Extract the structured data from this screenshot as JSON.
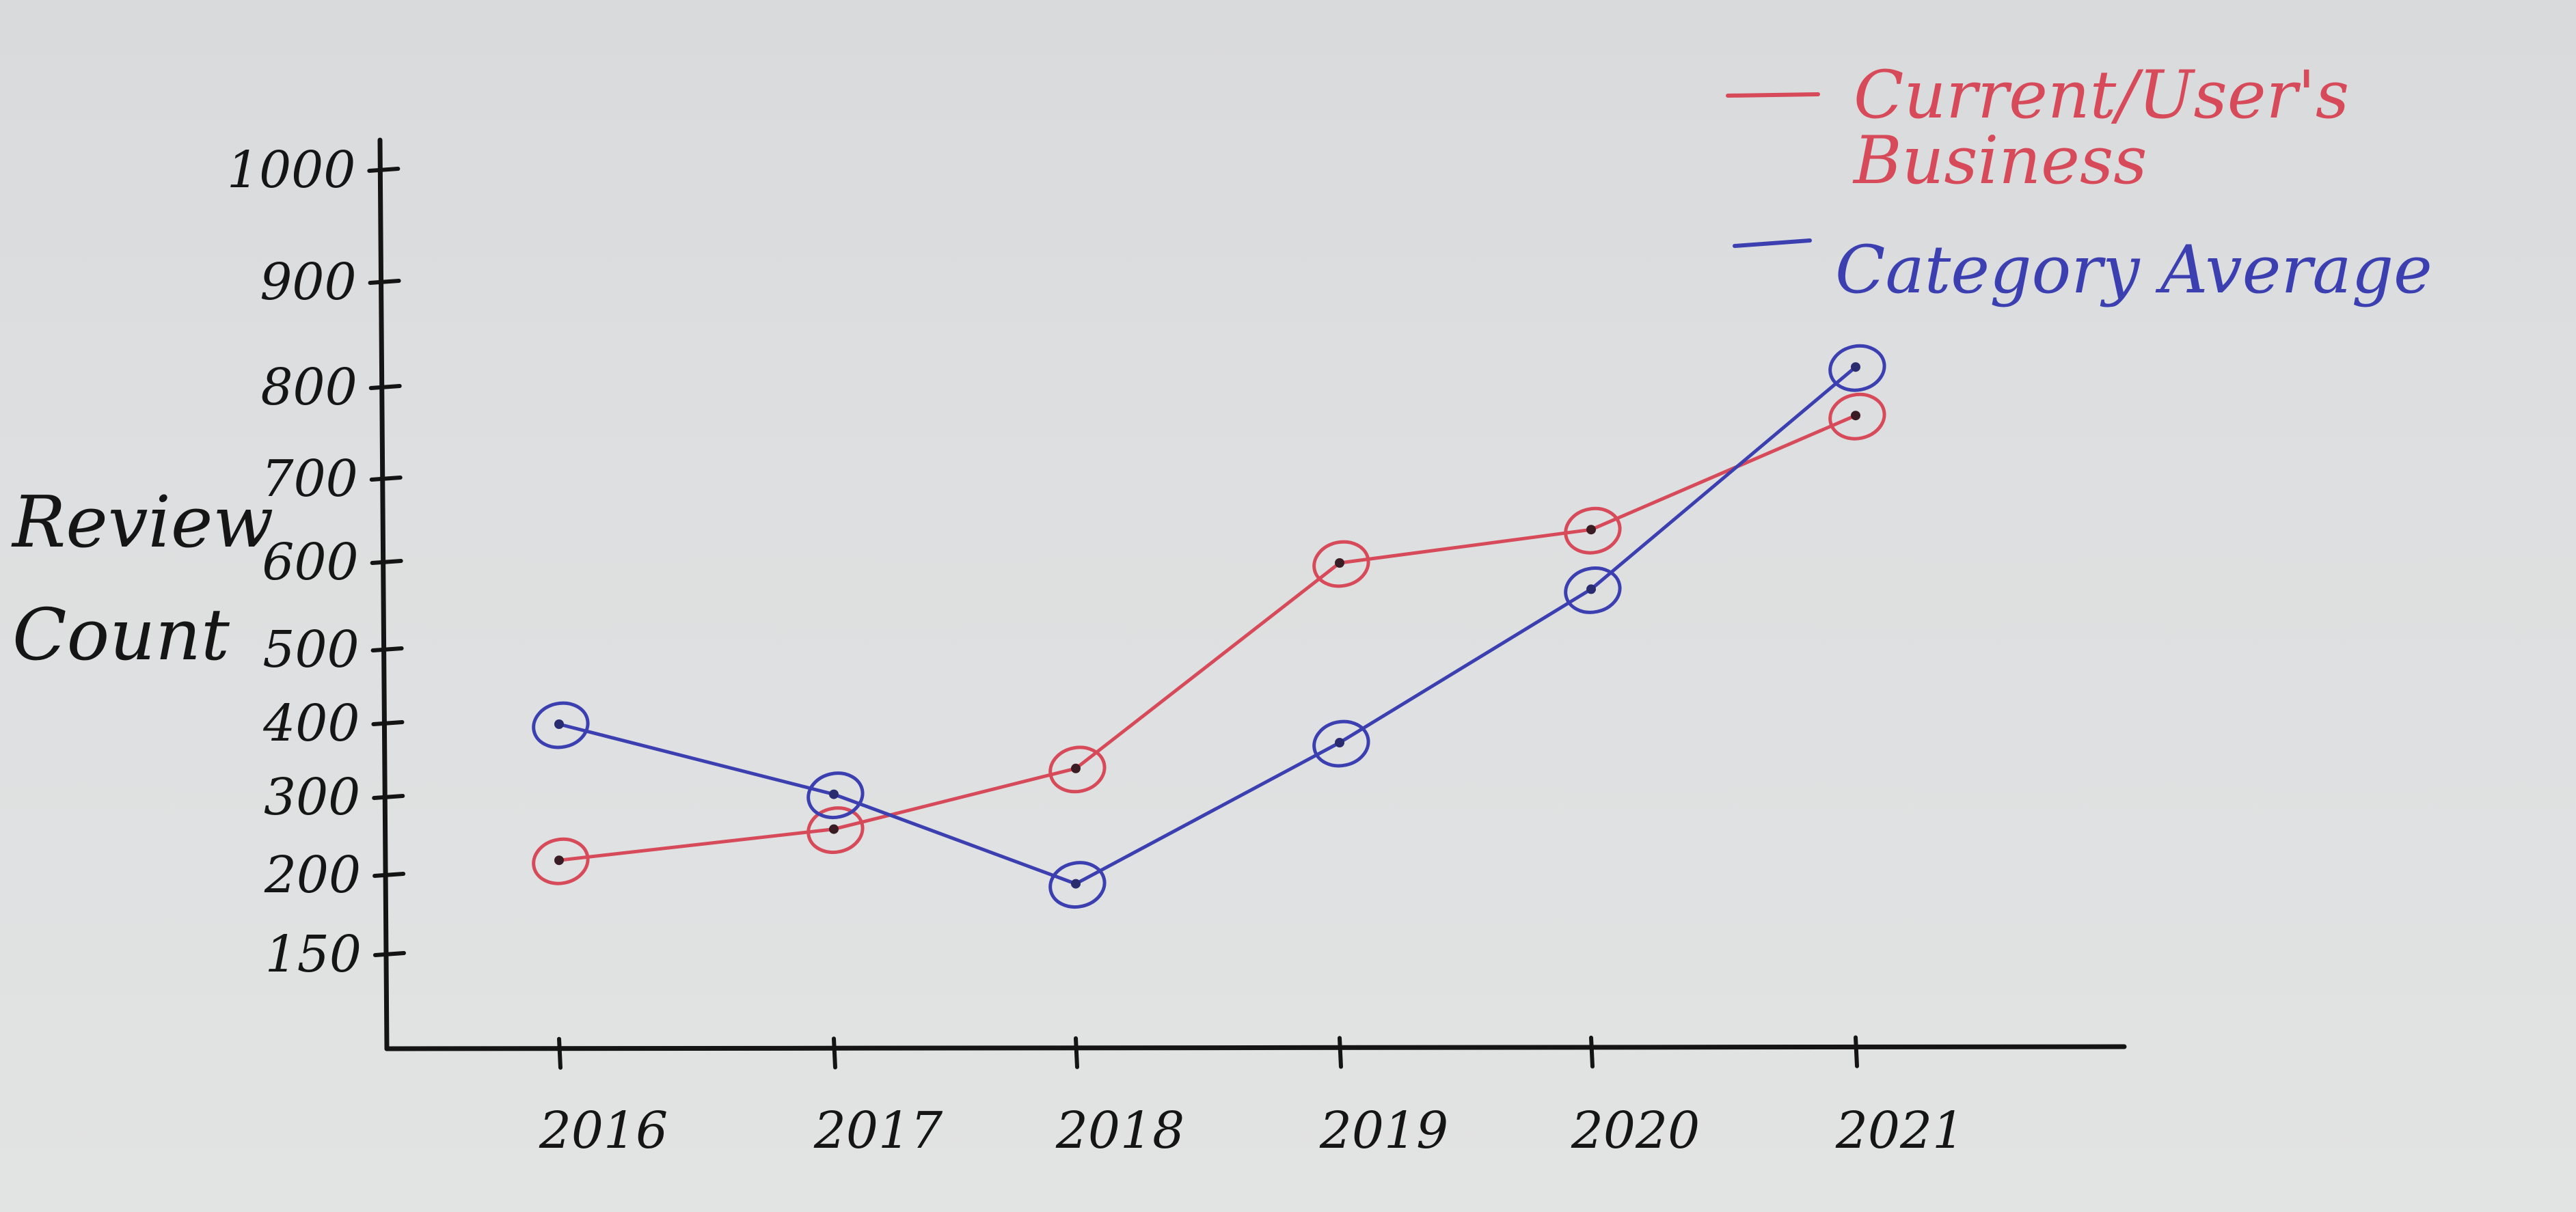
{
  "chart_data": {
    "type": "line",
    "x": [
      "2016",
      "2017",
      "2018",
      "2019",
      "2020",
      "2021"
    ],
    "ylabel": "Review Count",
    "ylabel_lines": [
      "Review",
      "Count"
    ],
    "xlabel": "",
    "yticks": [
      150,
      200,
      300,
      400,
      500,
      600,
      700,
      800,
      900,
      1000
    ],
    "ytick_labels": [
      "150",
      "200",
      "300",
      "400",
      "500",
      "600",
      "700",
      "800",
      "900",
      "1000"
    ],
    "legend_position": "top-right",
    "grid": false,
    "series": [
      {
        "name": "Current/User's Business",
        "name_lines": [
          "Current/User's",
          "Business"
        ],
        "color": "#d64a5a",
        "values": [
          220,
          260,
          340,
          600,
          640,
          770
        ]
      },
      {
        "name": "Category Average",
        "name_lines": [
          "Category Average"
        ],
        "color": "#3b3fb0",
        "values": [
          400,
          305,
          195,
          375,
          570,
          820
        ]
      }
    ]
  }
}
